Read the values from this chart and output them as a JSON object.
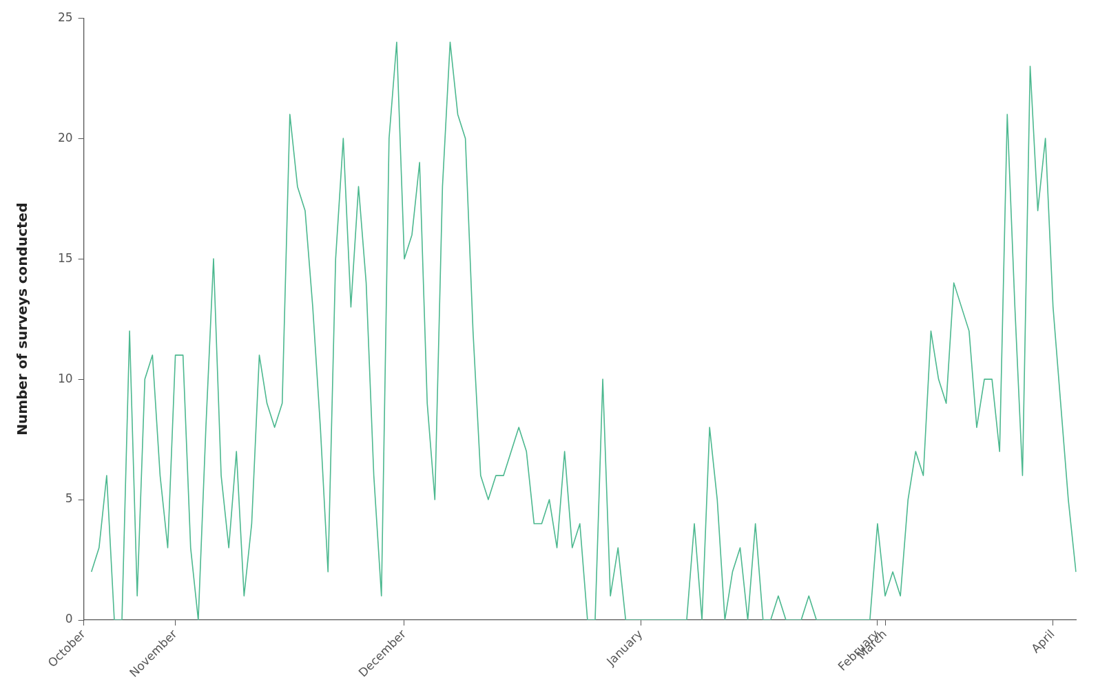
{
  "chart_data": {
    "type": "line",
    "ylabel": "Number of surveys conducted",
    "categories": [
      "October",
      null,
      null,
      null,
      null,
      null,
      null,
      null,
      null,
      null,
      null,
      null,
      "November",
      null,
      null,
      null,
      null,
      null,
      null,
      null,
      null,
      null,
      null,
      null,
      null,
      null,
      null,
      null,
      null,
      null,
      null,
      null,
      null,
      null,
      null,
      null,
      null,
      null,
      null,
      null,
      null,
      null,
      "December",
      null,
      null,
      null,
      null,
      null,
      null,
      null,
      null,
      null,
      null,
      null,
      null,
      null,
      null,
      null,
      null,
      null,
      null,
      null,
      null,
      null,
      null,
      null,
      null,
      null,
      null,
      null,
      null,
      null,
      null,
      "January",
      null,
      null,
      null,
      null,
      null,
      null,
      null,
      null,
      null,
      null,
      null,
      null,
      null,
      null,
      null,
      null,
      null,
      null,
      null,
      null,
      null,
      null,
      null,
      null,
      null,
      null,
      null,
      null,
      null,
      null,
      "February",
      "March",
      null,
      null,
      null,
      null,
      null,
      null,
      null,
      null,
      null,
      null,
      null,
      null,
      null,
      null,
      null,
      null,
      null,
      null,
      null,
      null,
      null,
      "April",
      null,
      null,
      null
    ],
    "series": [
      {
        "color": "#4cb88f",
        "values": [
          null,
          2,
          3,
          6,
          0,
          0,
          12,
          1,
          10,
          11,
          6,
          3,
          11,
          11,
          3,
          0,
          8,
          15,
          6,
          3,
          7,
          1,
          4,
          11,
          9,
          8,
          9,
          21,
          18,
          17,
          13,
          8,
          2,
          15,
          20,
          13,
          18,
          14,
          6,
          1,
          20,
          24,
          15,
          16,
          19,
          9,
          5,
          18,
          24,
          21,
          20,
          12,
          6,
          5,
          6,
          6,
          7,
          8,
          7,
          4,
          4,
          5,
          3,
          7,
          3,
          4,
          0,
          0,
          10,
          1,
          3,
          0,
          0,
          0,
          0,
          0,
          0,
          0,
          0,
          0,
          4,
          0,
          8,
          5,
          0,
          2,
          3,
          0,
          4,
          0,
          0,
          1,
          0,
          0,
          0,
          1,
          0,
          0,
          0,
          0,
          0,
          0,
          0,
          0,
          4,
          1,
          2,
          1,
          5,
          7,
          6,
          12,
          10,
          9,
          14,
          13,
          12,
          8,
          10,
          10,
          7,
          21,
          13,
          6,
          23,
          17,
          20,
          13,
          9,
          5,
          2
        ]
      }
    ],
    "ylim": [
      0,
      25
    ],
    "yticks": [
      0,
      5,
      10,
      15,
      20,
      25
    ],
    "grid": false,
    "legend": false,
    "marker": "none",
    "line_style": "solid"
  }
}
